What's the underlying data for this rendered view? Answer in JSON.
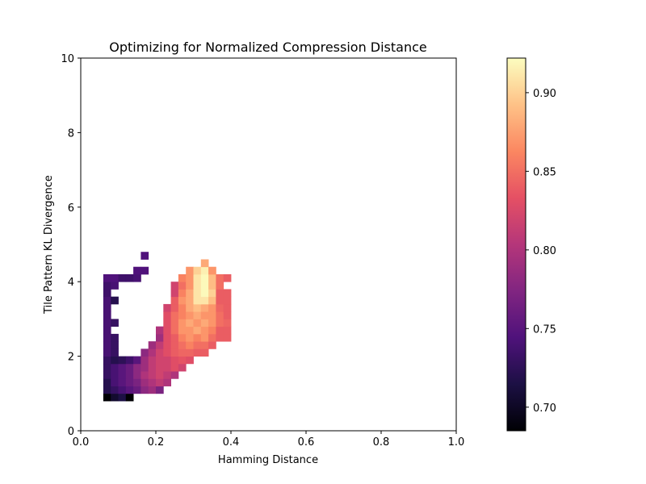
{
  "chart_data": {
    "type": "heatmap",
    "title": "Optimizing for Normalized Compression Distance",
    "xlabel": "Hamming Distance",
    "ylabel": "Tile Pattern KL Divergence",
    "xlim": [
      0,
      1
    ],
    "ylim": [
      0,
      10
    ],
    "xticks": [
      "0.0",
      "0.2",
      "0.4",
      "0.6",
      "0.8",
      "1.0"
    ],
    "yticks": [
      "0",
      "2",
      "4",
      "6",
      "8",
      "10"
    ],
    "x_tick_values": [
      0,
      0.2,
      0.4,
      0.6,
      0.8,
      1.0
    ],
    "y_tick_values": [
      0,
      2,
      4,
      6,
      8,
      10
    ],
    "cell_width": 0.02,
    "cell_height": 0.2,
    "colormap": "magma",
    "colorbar": {
      "vmin": 0.685,
      "vmax": 0.922,
      "ticks": [
        "0.70",
        "0.75",
        "0.80",
        "0.85",
        "0.90"
      ],
      "tick_values": [
        0.7,
        0.75,
        0.8,
        0.85,
        0.9
      ]
    },
    "grid": false,
    "cells": [
      [
        0.07,
        0.9,
        0.685
      ],
      [
        0.09,
        0.9,
        0.705
      ],
      [
        0.11,
        0.9,
        0.715
      ],
      [
        0.13,
        0.9,
        0.685
      ],
      [
        0.07,
        1.1,
        0.72
      ],
      [
        0.09,
        1.1,
        0.73
      ],
      [
        0.11,
        1.1,
        0.74
      ],
      [
        0.13,
        1.1,
        0.75
      ],
      [
        0.15,
        1.1,
        0.76
      ],
      [
        0.17,
        1.1,
        0.78
      ],
      [
        0.19,
        1.1,
        0.79
      ],
      [
        0.21,
        1.1,
        0.77
      ],
      [
        0.07,
        1.3,
        0.72
      ],
      [
        0.09,
        1.3,
        0.74
      ],
      [
        0.11,
        1.3,
        0.75
      ],
      [
        0.13,
        1.3,
        0.76
      ],
      [
        0.15,
        1.3,
        0.77
      ],
      [
        0.17,
        1.3,
        0.79
      ],
      [
        0.19,
        1.3,
        0.8
      ],
      [
        0.21,
        1.3,
        0.81
      ],
      [
        0.23,
        1.3,
        0.8
      ],
      [
        0.07,
        1.5,
        0.73
      ],
      [
        0.09,
        1.5,
        0.74
      ],
      [
        0.11,
        1.5,
        0.75
      ],
      [
        0.13,
        1.5,
        0.76
      ],
      [
        0.15,
        1.5,
        0.78
      ],
      [
        0.17,
        1.5,
        0.8
      ],
      [
        0.19,
        1.5,
        0.81
      ],
      [
        0.21,
        1.5,
        0.82
      ],
      [
        0.23,
        1.5,
        0.81
      ],
      [
        0.25,
        1.5,
        0.8
      ],
      [
        0.07,
        1.7,
        0.73
      ],
      [
        0.09,
        1.7,
        0.74
      ],
      [
        0.11,
        1.7,
        0.75
      ],
      [
        0.13,
        1.7,
        0.76
      ],
      [
        0.15,
        1.7,
        0.78
      ],
      [
        0.17,
        1.7,
        0.79
      ],
      [
        0.19,
        1.7,
        0.81
      ],
      [
        0.21,
        1.7,
        0.82
      ],
      [
        0.23,
        1.7,
        0.82
      ],
      [
        0.25,
        1.7,
        0.83
      ],
      [
        0.27,
        1.7,
        0.82
      ],
      [
        0.07,
        1.9,
        0.73
      ],
      [
        0.09,
        1.9,
        0.72
      ],
      [
        0.11,
        1.9,
        0.725
      ],
      [
        0.13,
        1.9,
        0.735
      ],
      [
        0.15,
        1.9,
        0.75
      ],
      [
        0.17,
        1.9,
        0.79
      ],
      [
        0.19,
        1.9,
        0.81
      ],
      [
        0.21,
        1.9,
        0.82
      ],
      [
        0.23,
        1.9,
        0.82
      ],
      [
        0.25,
        1.9,
        0.83
      ],
      [
        0.27,
        1.9,
        0.835
      ],
      [
        0.29,
        1.9,
        0.83
      ],
      [
        0.07,
        2.1,
        0.74
      ],
      [
        0.09,
        2.1,
        0.73
      ],
      [
        0.17,
        2.1,
        0.78
      ],
      [
        0.19,
        2.1,
        0.8
      ],
      [
        0.21,
        2.1,
        0.82
      ],
      [
        0.23,
        2.1,
        0.83
      ],
      [
        0.25,
        2.1,
        0.84
      ],
      [
        0.27,
        2.1,
        0.845
      ],
      [
        0.29,
        2.1,
        0.845
      ],
      [
        0.31,
        2.1,
        0.84
      ],
      [
        0.33,
        2.1,
        0.84
      ],
      [
        0.07,
        2.3,
        0.74
      ],
      [
        0.09,
        2.3,
        0.73
      ],
      [
        0.19,
        2.3,
        0.79
      ],
      [
        0.21,
        2.3,
        0.81
      ],
      [
        0.23,
        2.3,
        0.83
      ],
      [
        0.25,
        2.3,
        0.84
      ],
      [
        0.27,
        2.3,
        0.85
      ],
      [
        0.29,
        2.3,
        0.86
      ],
      [
        0.31,
        2.3,
        0.85
      ],
      [
        0.33,
        2.3,
        0.85
      ],
      [
        0.35,
        2.3,
        0.84
      ],
      [
        0.07,
        2.5,
        0.74
      ],
      [
        0.09,
        2.5,
        0.73
      ],
      [
        0.21,
        2.5,
        0.79
      ],
      [
        0.23,
        2.5,
        0.83
      ],
      [
        0.25,
        2.5,
        0.84
      ],
      [
        0.27,
        2.5,
        0.86
      ],
      [
        0.29,
        2.5,
        0.87
      ],
      [
        0.31,
        2.5,
        0.86
      ],
      [
        0.33,
        2.5,
        0.87
      ],
      [
        0.35,
        2.5,
        0.85
      ],
      [
        0.37,
        2.5,
        0.84
      ],
      [
        0.39,
        2.5,
        0.84
      ],
      [
        0.07,
        2.7,
        0.74
      ],
      [
        0.21,
        2.7,
        0.8
      ],
      [
        0.23,
        2.7,
        0.83
      ],
      [
        0.25,
        2.7,
        0.85
      ],
      [
        0.27,
        2.7,
        0.87
      ],
      [
        0.29,
        2.7,
        0.87
      ],
      [
        0.31,
        2.7,
        0.88
      ],
      [
        0.33,
        2.7,
        0.87
      ],
      [
        0.35,
        2.7,
        0.86
      ],
      [
        0.37,
        2.7,
        0.84
      ],
      [
        0.39,
        2.7,
        0.84
      ],
      [
        0.07,
        2.9,
        0.74
      ],
      [
        0.09,
        2.9,
        0.73
      ],
      [
        0.23,
        2.9,
        0.83
      ],
      [
        0.25,
        2.9,
        0.85
      ],
      [
        0.27,
        2.9,
        0.87
      ],
      [
        0.29,
        2.9,
        0.88
      ],
      [
        0.31,
        2.9,
        0.87
      ],
      [
        0.33,
        2.9,
        0.88
      ],
      [
        0.35,
        2.9,
        0.87
      ],
      [
        0.37,
        2.9,
        0.85
      ],
      [
        0.39,
        2.9,
        0.845
      ],
      [
        0.07,
        3.1,
        0.74
      ],
      [
        0.23,
        3.1,
        0.83
      ],
      [
        0.25,
        3.1,
        0.85
      ],
      [
        0.27,
        3.1,
        0.86
      ],
      [
        0.29,
        3.1,
        0.87
      ],
      [
        0.31,
        3.1,
        0.88
      ],
      [
        0.33,
        3.1,
        0.87
      ],
      [
        0.35,
        3.1,
        0.87
      ],
      [
        0.37,
        3.1,
        0.85
      ],
      [
        0.39,
        3.1,
        0.84
      ],
      [
        0.07,
        3.3,
        0.74
      ],
      [
        0.23,
        3.3,
        0.82
      ],
      [
        0.25,
        3.3,
        0.84
      ],
      [
        0.27,
        3.3,
        0.86
      ],
      [
        0.29,
        3.3,
        0.88
      ],
      [
        0.31,
        3.3,
        0.89
      ],
      [
        0.33,
        3.3,
        0.88
      ],
      [
        0.35,
        3.3,
        0.87
      ],
      [
        0.37,
        3.3,
        0.845
      ],
      [
        0.39,
        3.3,
        0.84
      ],
      [
        0.07,
        3.5,
        0.74
      ],
      [
        0.09,
        3.5,
        0.72
      ],
      [
        0.25,
        3.5,
        0.84
      ],
      [
        0.27,
        3.5,
        0.87
      ],
      [
        0.29,
        3.5,
        0.88
      ],
      [
        0.31,
        3.5,
        0.91
      ],
      [
        0.33,
        3.5,
        0.91
      ],
      [
        0.35,
        3.5,
        0.89
      ],
      [
        0.37,
        3.5,
        0.84
      ],
      [
        0.39,
        3.5,
        0.84
      ],
      [
        0.07,
        3.7,
        0.735
      ],
      [
        0.25,
        3.7,
        0.82
      ],
      [
        0.27,
        3.7,
        0.86
      ],
      [
        0.29,
        3.7,
        0.88
      ],
      [
        0.31,
        3.7,
        0.91
      ],
      [
        0.33,
        3.7,
        0.92
      ],
      [
        0.35,
        3.7,
        0.9
      ],
      [
        0.37,
        3.7,
        0.84
      ],
      [
        0.39,
        3.7,
        0.84
      ],
      [
        0.07,
        3.9,
        0.735
      ],
      [
        0.09,
        3.9,
        0.74
      ],
      [
        0.25,
        3.9,
        0.82
      ],
      [
        0.27,
        3.9,
        0.85
      ],
      [
        0.29,
        3.9,
        0.87
      ],
      [
        0.31,
        3.9,
        0.91
      ],
      [
        0.33,
        3.9,
        0.92
      ],
      [
        0.35,
        3.9,
        0.89
      ],
      [
        0.37,
        3.9,
        0.85
      ],
      [
        0.07,
        4.1,
        0.745
      ],
      [
        0.09,
        4.1,
        0.745
      ],
      [
        0.11,
        4.1,
        0.735
      ],
      [
        0.13,
        4.1,
        0.735
      ],
      [
        0.15,
        4.1,
        0.74
      ],
      [
        0.27,
        4.1,
        0.86
      ],
      [
        0.29,
        4.1,
        0.87
      ],
      [
        0.31,
        4.1,
        0.91
      ],
      [
        0.33,
        4.1,
        0.92
      ],
      [
        0.35,
        4.1,
        0.89
      ],
      [
        0.37,
        4.1,
        0.85
      ],
      [
        0.39,
        4.1,
        0.84
      ],
      [
        0.15,
        4.3,
        0.745
      ],
      [
        0.17,
        4.3,
        0.745
      ],
      [
        0.29,
        4.3,
        0.87
      ],
      [
        0.31,
        4.3,
        0.9
      ],
      [
        0.33,
        4.3,
        0.915
      ],
      [
        0.35,
        4.3,
        0.87
      ],
      [
        0.33,
        4.5,
        0.88
      ],
      [
        0.17,
        4.7,
        0.745
      ]
    ]
  }
}
